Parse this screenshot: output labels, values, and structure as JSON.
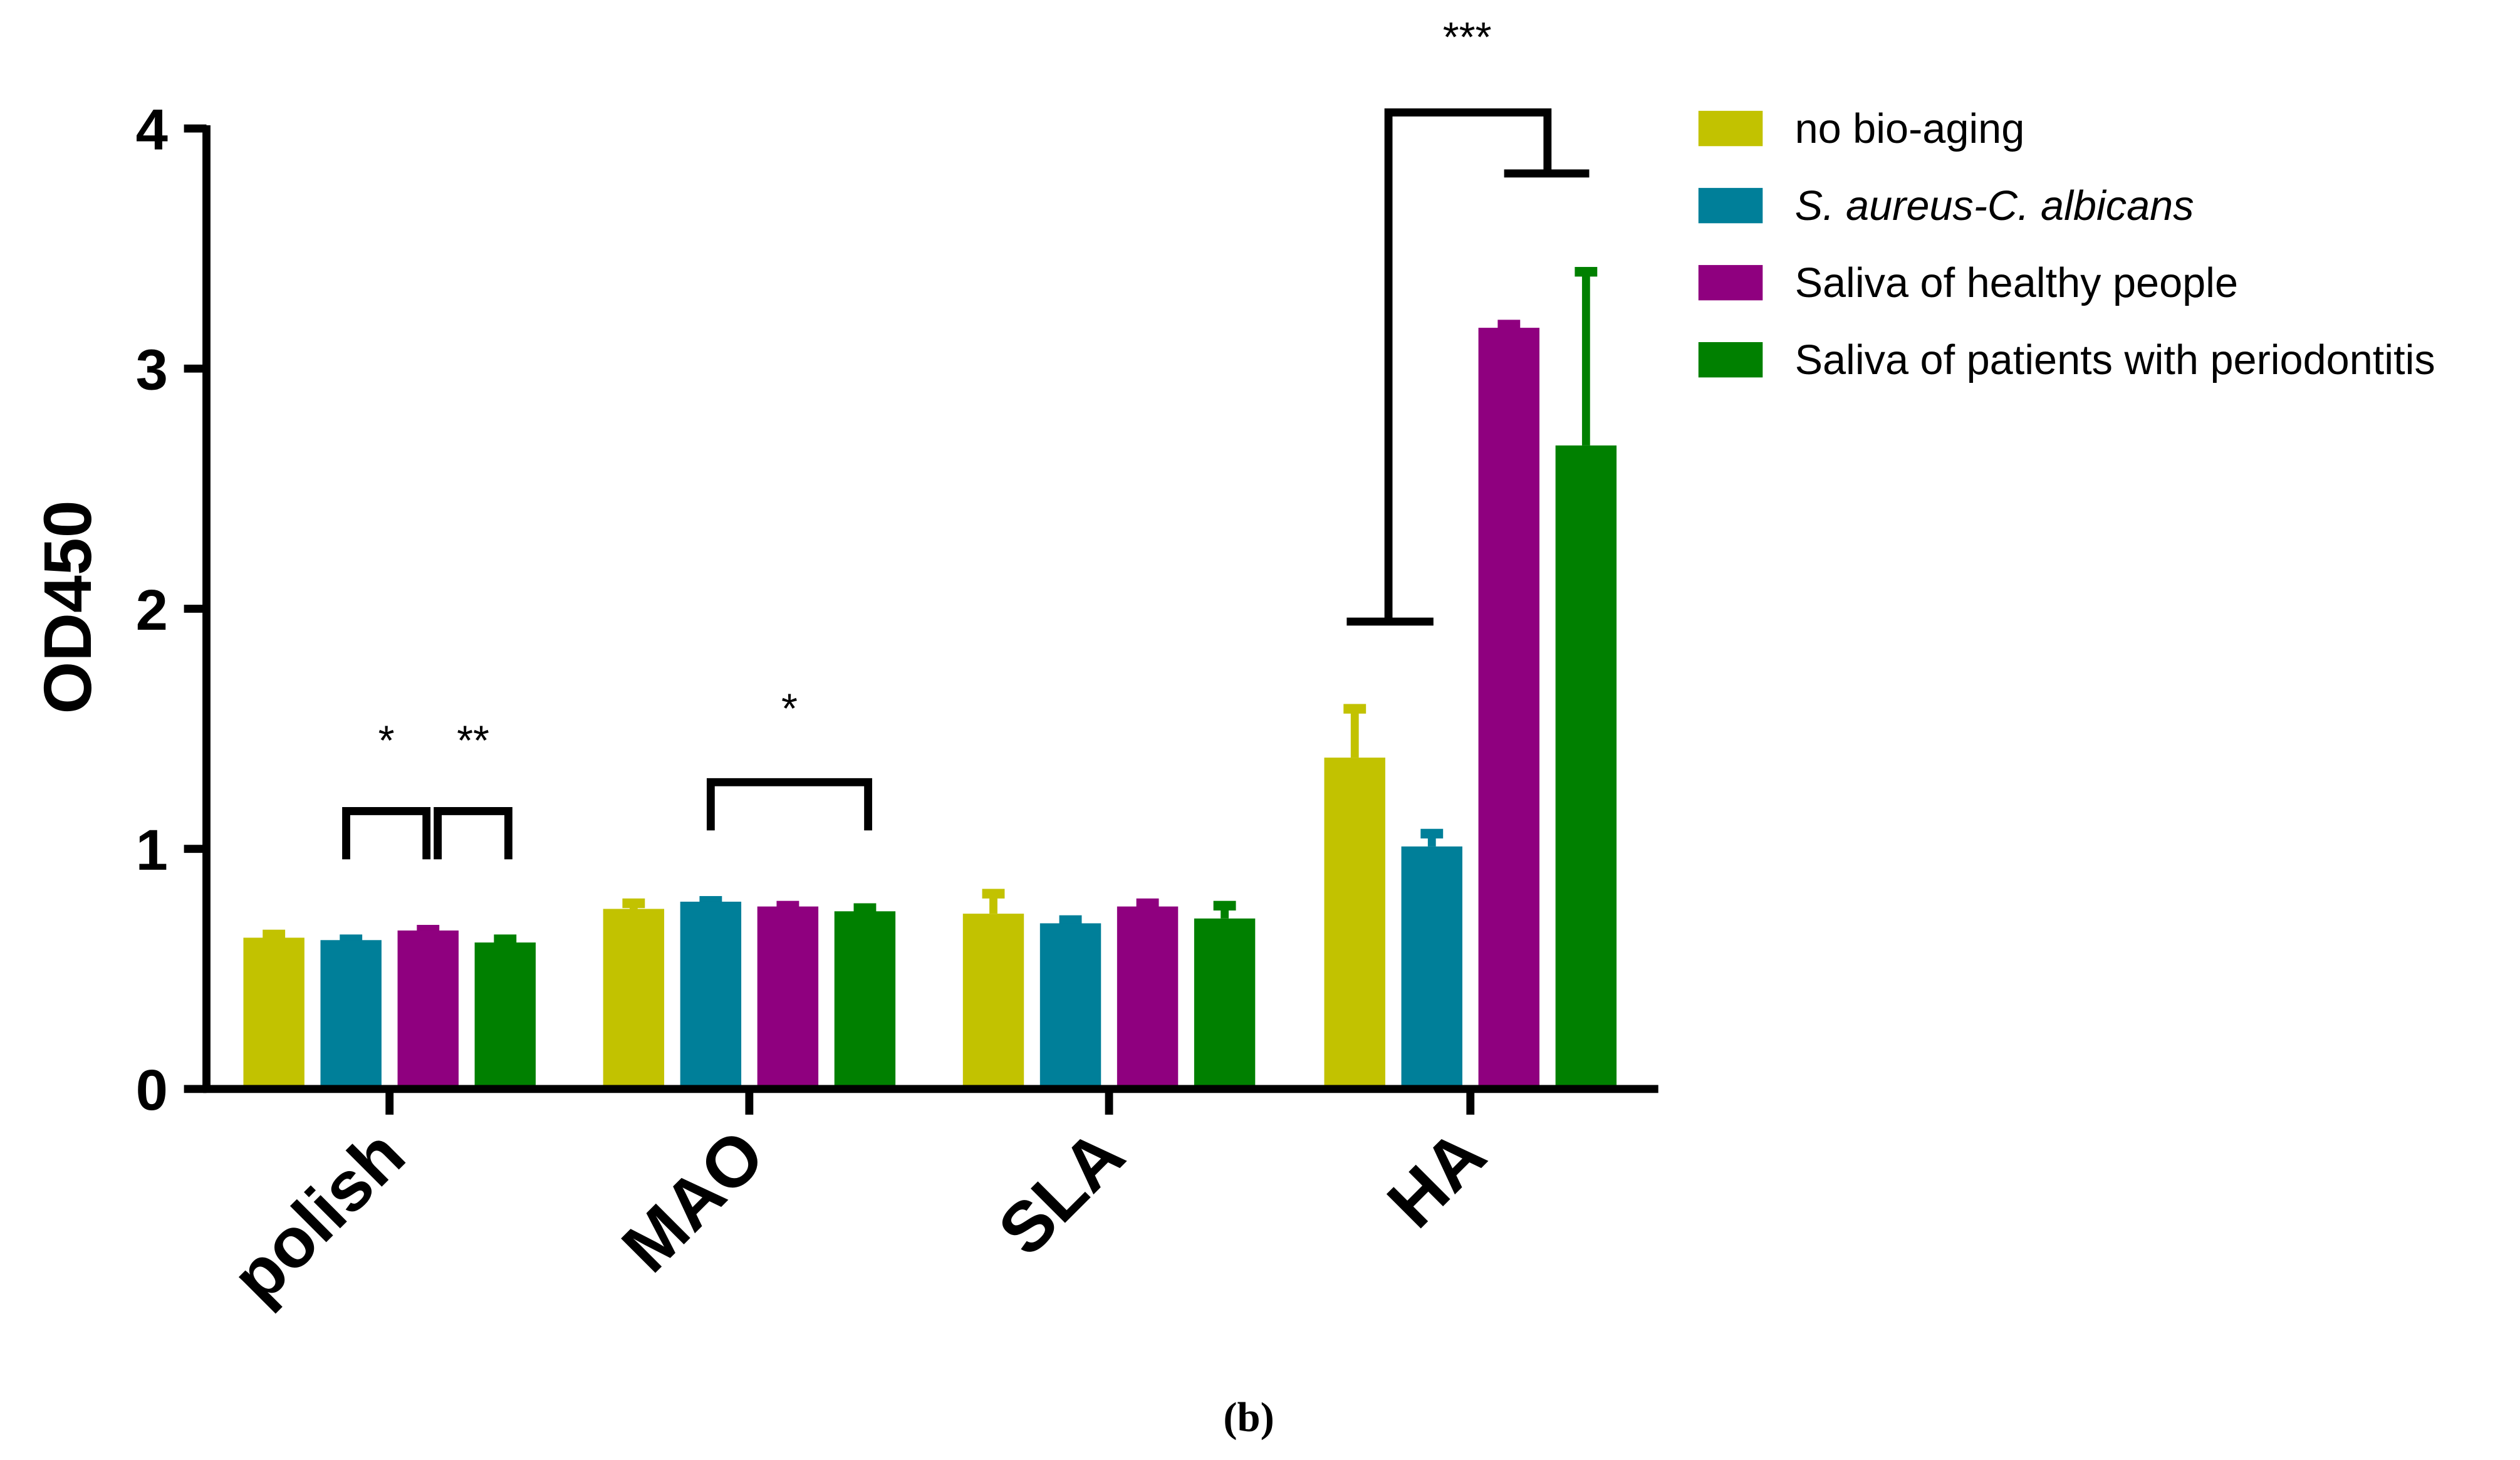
{
  "chart_data": {
    "type": "bar",
    "title": "",
    "xlabel": "",
    "ylabel": "OD450",
    "ylim": [
      0,
      4
    ],
    "yticks": [
      "0",
      "1",
      "2",
      "3",
      "4"
    ],
    "categories": [
      "polish",
      "MAO",
      "SLA",
      "HA"
    ],
    "series": [
      {
        "name": "no bio-aging",
        "italic": false,
        "color": "#c2c200",
        "values": [
          0.63,
          0.75,
          0.73,
          1.38
        ],
        "errors": [
          0.02,
          0.03,
          0.09,
          0.21
        ]
      },
      {
        "name": "S. aureus-C. albicans",
        "italic": true,
        "color": "#007f99",
        "values": [
          0.62,
          0.78,
          0.69,
          1.01
        ],
        "errors": [
          0.01,
          0.01,
          0.02,
          0.06
        ]
      },
      {
        "name": "Saliva of healthy people",
        "italic": false,
        "color": "#8f007f",
        "values": [
          0.66,
          0.76,
          0.76,
          3.17
        ],
        "errors": [
          0.01,
          0.01,
          0.02,
          0.02
        ]
      },
      {
        "name": "Saliva of patients with periodontitis",
        "italic": false,
        "color": "#008000",
        "values": [
          0.61,
          0.74,
          0.71,
          2.68
        ],
        "errors": [
          0.02,
          0.02,
          0.06,
          0.73
        ]
      }
    ],
    "legend_position": "top-right",
    "annotations": [
      {
        "label": "*",
        "category": "polish",
        "between": [
          "no bio-aging",
          "Saliva of healthy people"
        ]
      },
      {
        "label": "**",
        "category": "polish",
        "between": [
          "Saliva of healthy people",
          "Saliva of patients with periodontitis"
        ]
      },
      {
        "label": "*",
        "category": "MAO",
        "between": [
          "S. aureus-C. albicans",
          "Saliva of patients with periodontitis"
        ]
      },
      {
        "label": "***",
        "category": "HA",
        "between": [
          "no bio-aging",
          "Saliva of healthy people / Saliva of patients with periodontitis"
        ]
      }
    ],
    "caption": "(b)"
  }
}
